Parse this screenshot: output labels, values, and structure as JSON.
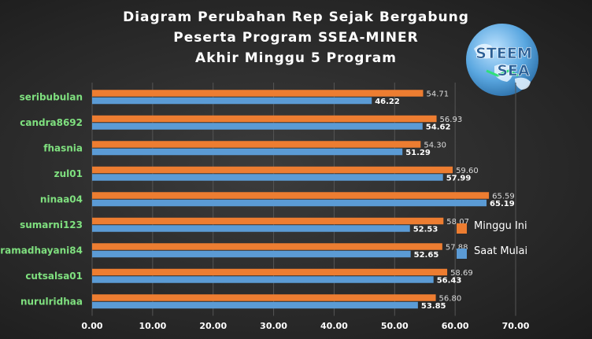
{
  "chart_data": {
    "type": "bar",
    "orientation": "horizontal",
    "title_lines": [
      "Diagram  Perubahan  Rep Sejak  Bergabung",
      "Peserta  Program  SSEA-MINER",
      "Akhir  Minggu  5 Program"
    ],
    "categories": [
      "seribubulan",
      "candra8692",
      "fhasnia",
      "zul01",
      "ninaa04",
      "sumarni123",
      "ramadhayani84",
      "cutsalsa01",
      "nurulridhaa"
    ],
    "series": [
      {
        "name": "Minggu Ini",
        "color": "#ed7d31",
        "values": [
          54.71,
          56.93,
          54.3,
          59.6,
          65.59,
          58.07,
          57.88,
          58.69,
          56.8
        ],
        "labels": [
          "54.71",
          "56.93",
          "54.30",
          "59.60",
          "65.59",
          "58.07",
          "57.88",
          "58.69",
          "56.80"
        ]
      },
      {
        "name": "Saat Mulai",
        "color": "#5b9bd5",
        "values": [
          46.22,
          54.62,
          51.29,
          57.99,
          65.19,
          52.53,
          52.65,
          56.43,
          53.85
        ],
        "labels": [
          "46.22",
          "54.62",
          "51.29",
          "57.99",
          "65.19",
          "52.53",
          "52.65",
          "56.43",
          "53.85"
        ]
      }
    ],
    "xlim": [
      0,
      70
    ],
    "x_ticks": [
      "0.00",
      "10.00",
      "20.00",
      "30.00",
      "40.00",
      "50.00",
      "60.00",
      "70.00"
    ],
    "grid": true,
    "legend_position": "right",
    "category_label_color": "#7fe07f",
    "watermark_text": [
      "STEEM",
      "SEA"
    ]
  }
}
